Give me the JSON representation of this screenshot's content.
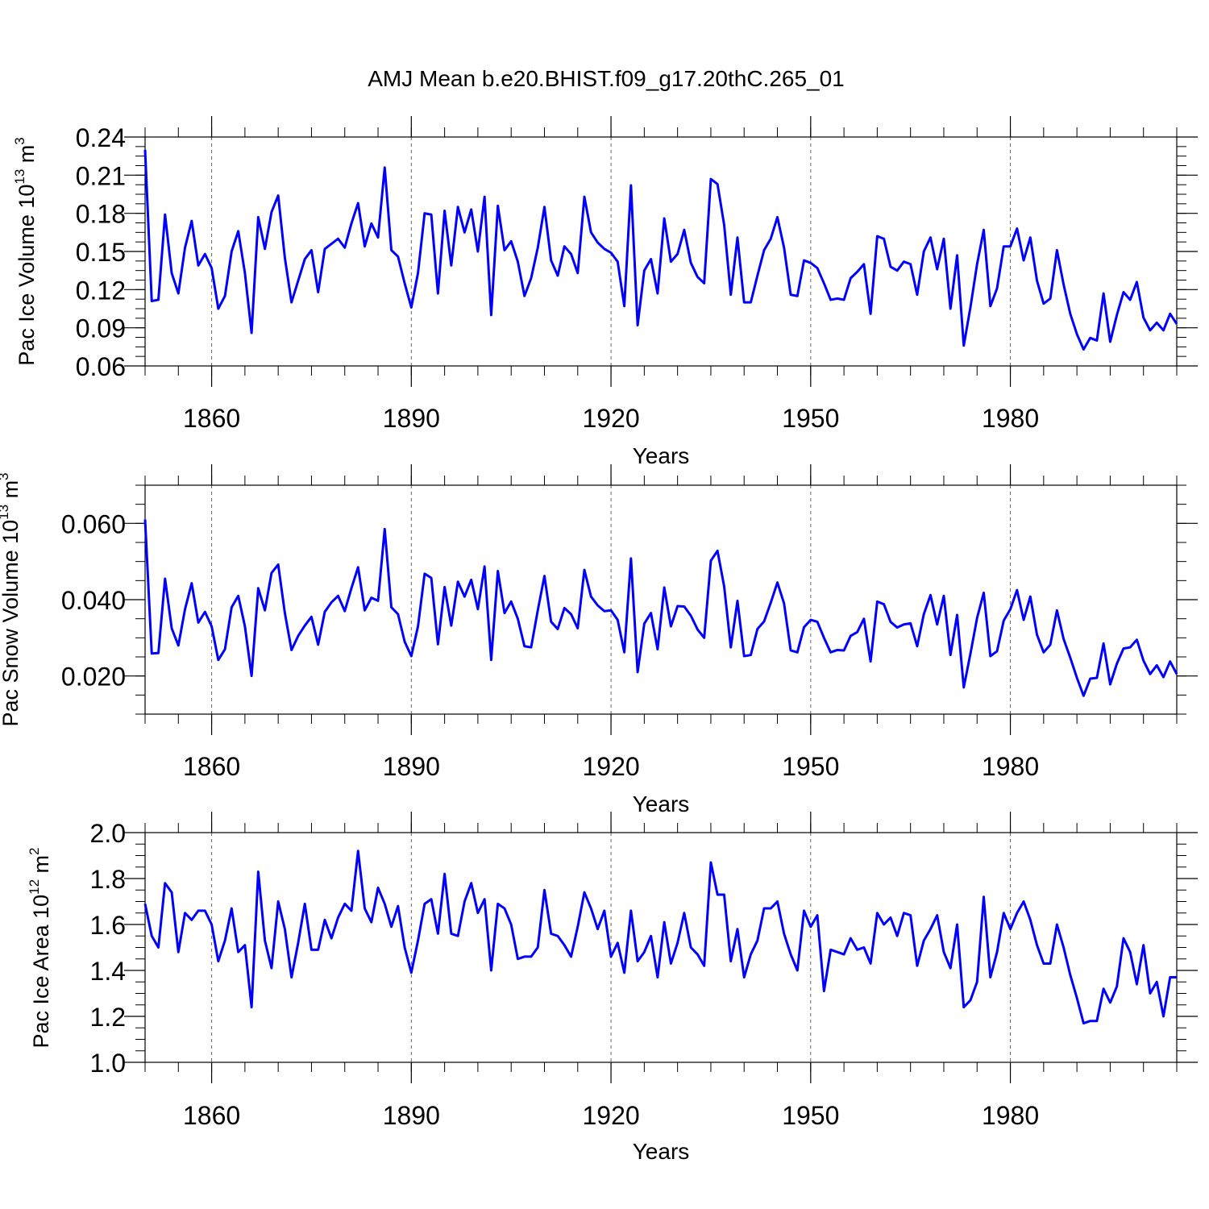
{
  "page_title": "AMJ Mean b.e20.BHIST.f09_g17.20thC.265_01",
  "colors": {
    "series": "#0000ff",
    "axis": "#000000",
    "grid": "#666666"
  },
  "chart_data": [
    {
      "type": "line",
      "title": "AMJ Mean b.e20.BHIST.f09_g17.20thC.265_01",
      "xlabel": "Years",
      "ylabel_main": "Pac Ice Volume 10",
      "ylabel_exp": "13",
      "ylabel_unit": " m",
      "ylabel_unit_exp": "3",
      "x_start": 1850,
      "xlim": [
        1850,
        2005
      ],
      "ylim": [
        0.06,
        0.24
      ],
      "xticks": [
        1860,
        1890,
        1920,
        1950,
        1980
      ],
      "xtick_labels": [
        "1860",
        "1890",
        "1920",
        "1950",
        "1980"
      ],
      "yticks": [
        0.06,
        0.09,
        0.12,
        0.15,
        0.18,
        0.21,
        0.24
      ],
      "ytick_labels": [
        "0.06",
        "0.09",
        "0.12",
        "0.15",
        "0.18",
        "0.21",
        "0.24"
      ],
      "y_minor_step": 0.0075,
      "vgrid": [
        1860,
        1890,
        1920,
        1950,
        1980
      ],
      "series": [
        {
          "name": "Pac Ice Volume",
          "values": [
            0.23,
            0.111,
            0.112,
            0.179,
            0.133,
            0.117,
            0.153,
            0.174,
            0.139,
            0.148,
            0.137,
            0.105,
            0.115,
            0.15,
            0.166,
            0.133,
            0.086,
            0.177,
            0.152,
            0.181,
            0.194,
            0.145,
            0.11,
            0.127,
            0.144,
            0.151,
            0.118,
            0.152,
            0.156,
            0.16,
            0.153,
            0.172,
            0.188,
            0.154,
            0.172,
            0.161,
            0.216,
            0.151,
            0.146,
            0.125,
            0.106,
            0.133,
            0.18,
            0.179,
            0.117,
            0.182,
            0.139,
            0.185,
            0.165,
            0.183,
            0.15,
            0.193,
            0.1,
            0.186,
            0.151,
            0.158,
            0.142,
            0.115,
            0.129,
            0.153,
            0.185,
            0.143,
            0.131,
            0.154,
            0.148,
            0.133,
            0.193,
            0.165,
            0.157,
            0.152,
            0.149,
            0.142,
            0.107,
            0.202,
            0.092,
            0.135,
            0.144,
            0.117,
            0.176,
            0.142,
            0.148,
            0.167,
            0.141,
            0.13,
            0.125,
            0.207,
            0.203,
            0.171,
            0.116,
            0.161,
            0.11,
            0.11,
            0.131,
            0.151,
            0.16,
            0.177,
            0.153,
            0.116,
            0.115,
            0.143,
            0.141,
            0.137,
            0.125,
            0.112,
            0.113,
            0.112,
            0.129,
            0.134,
            0.14,
            0.101,
            0.162,
            0.16,
            0.138,
            0.135,
            0.142,
            0.14,
            0.116,
            0.15,
            0.161,
            0.136,
            0.16,
            0.105,
            0.147,
            0.076,
            0.106,
            0.14,
            0.167,
            0.107,
            0.121,
            0.154,
            0.154,
            0.168,
            0.143,
            0.161,
            0.127,
            0.109,
            0.113,
            0.151,
            0.124,
            0.101,
            0.085,
            0.073,
            0.082,
            0.08,
            0.117,
            0.079,
            0.1,
            0.118,
            0.112,
            0.126,
            0.098,
            0.088,
            0.094,
            0.088,
            0.101,
            0.093
          ]
        }
      ]
    },
    {
      "type": "line",
      "title": "",
      "xlabel": "Years",
      "ylabel_main": "Pac Snow Volume 10",
      "ylabel_exp": "13",
      "ylabel_unit": " m",
      "ylabel_unit_exp": "3",
      "x_start": 1850,
      "xlim": [
        1850,
        2005
      ],
      "ylim": [
        0.01,
        0.07
      ],
      "xticks": [
        1860,
        1890,
        1920,
        1950,
        1980
      ],
      "xtick_labels": [
        "1860",
        "1890",
        "1920",
        "1950",
        "1980"
      ],
      "yticks": [
        0.02,
        0.04,
        0.06
      ],
      "ytick_labels": [
        "0.020",
        "0.040",
        "0.060"
      ],
      "y_minor_step": 0.005,
      "vgrid": [
        1860,
        1890,
        1920,
        1950,
        1980
      ],
      "series": [
        {
          "name": "Pac Snow Volume",
          "values": [
            0.061,
            0.0259,
            0.026,
            0.0455,
            0.0325,
            0.028,
            0.0375,
            0.0443,
            0.034,
            0.0368,
            0.033,
            0.0242,
            0.027,
            0.038,
            0.041,
            0.033,
            0.02,
            0.043,
            0.0372,
            0.047,
            0.0492,
            0.0365,
            0.0268,
            0.0305,
            0.0332,
            0.0355,
            0.0282,
            0.0368,
            0.0393,
            0.041,
            0.037,
            0.043,
            0.0485,
            0.0372,
            0.0405,
            0.0397,
            0.0585,
            0.038,
            0.0362,
            0.029,
            0.0252,
            0.033,
            0.0468,
            0.0457,
            0.0283,
            0.0433,
            0.0332,
            0.0447,
            0.0408,
            0.0452,
            0.0375,
            0.0487,
            0.0242,
            0.0475,
            0.0365,
            0.0395,
            0.035,
            0.0278,
            0.0275,
            0.0372,
            0.0462,
            0.0342,
            0.0323,
            0.0378,
            0.0362,
            0.0325,
            0.0478,
            0.0408,
            0.0385,
            0.037,
            0.0372,
            0.0347,
            0.0262,
            0.0508,
            0.021,
            0.0337,
            0.0365,
            0.027,
            0.0432,
            0.033,
            0.0383,
            0.0382,
            0.0358,
            0.0322,
            0.03,
            0.0502,
            0.0528,
            0.0435,
            0.0275,
            0.0397,
            0.0252,
            0.0255,
            0.0323,
            0.0343,
            0.0392,
            0.0445,
            0.039,
            0.0267,
            0.0262,
            0.0328,
            0.0347,
            0.0342,
            0.03,
            0.0262,
            0.0268,
            0.0267,
            0.0305,
            0.0315,
            0.035,
            0.0238,
            0.0395,
            0.0388,
            0.0342,
            0.0327,
            0.0335,
            0.0338,
            0.0278,
            0.0362,
            0.0412,
            0.0335,
            0.041,
            0.0255,
            0.036,
            0.017,
            0.0258,
            0.0352,
            0.0418,
            0.0252,
            0.0265,
            0.0345,
            0.0375,
            0.0425,
            0.0347,
            0.0408,
            0.0308,
            0.0262,
            0.0282,
            0.0372,
            0.0297,
            0.0248,
            0.0195,
            0.0148,
            0.0193,
            0.0195,
            0.0285,
            0.0178,
            0.0232,
            0.0272,
            0.0275,
            0.0295,
            0.024,
            0.0205,
            0.0228,
            0.0197,
            0.0238,
            0.0205
          ]
        }
      ]
    },
    {
      "type": "line",
      "title": "",
      "xlabel": "Years",
      "ylabel_main": "Pac Ice Area 10",
      "ylabel_exp": "12",
      "ylabel_unit": " m",
      "ylabel_unit_exp": "2",
      "x_start": 1850,
      "xlim": [
        1850,
        2005
      ],
      "ylim": [
        1.0,
        2.0
      ],
      "xticks": [
        1860,
        1890,
        1920,
        1950,
        1980
      ],
      "xtick_labels": [
        "1860",
        "1890",
        "1920",
        "1950",
        "1980"
      ],
      "yticks": [
        1.0,
        1.2,
        1.4,
        1.6,
        1.8,
        2.0
      ],
      "ytick_labels": [
        "1.0",
        "1.2",
        "1.4",
        "1.6",
        "1.8",
        "2.0"
      ],
      "y_minor_step": 0.05,
      "vgrid": [
        1860,
        1890,
        1920,
        1950,
        1980
      ],
      "series": [
        {
          "name": "Pac Ice Area",
          "values": [
            1.69,
            1.55,
            1.5,
            1.78,
            1.74,
            1.48,
            1.65,
            1.62,
            1.66,
            1.66,
            1.6,
            1.44,
            1.53,
            1.67,
            1.48,
            1.51,
            1.24,
            1.83,
            1.53,
            1.41,
            1.7,
            1.58,
            1.37,
            1.52,
            1.69,
            1.49,
            1.49,
            1.62,
            1.54,
            1.63,
            1.69,
            1.66,
            1.92,
            1.67,
            1.61,
            1.76,
            1.69,
            1.59,
            1.68,
            1.5,
            1.39,
            1.53,
            1.69,
            1.71,
            1.56,
            1.82,
            1.56,
            1.55,
            1.7,
            1.78,
            1.65,
            1.71,
            1.4,
            1.69,
            1.67,
            1.6,
            1.45,
            1.46,
            1.46,
            1.5,
            1.75,
            1.56,
            1.55,
            1.51,
            1.46,
            1.59,
            1.74,
            1.67,
            1.58,
            1.66,
            1.46,
            1.52,
            1.39,
            1.66,
            1.44,
            1.48,
            1.55,
            1.37,
            1.61,
            1.43,
            1.52,
            1.65,
            1.5,
            1.47,
            1.42,
            1.87,
            1.73,
            1.73,
            1.44,
            1.58,
            1.37,
            1.47,
            1.53,
            1.67,
            1.67,
            1.7,
            1.56,
            1.47,
            1.4,
            1.66,
            1.59,
            1.64,
            1.31,
            1.49,
            1.48,
            1.47,
            1.54,
            1.49,
            1.5,
            1.43,
            1.65,
            1.6,
            1.63,
            1.55,
            1.65,
            1.64,
            1.42,
            1.53,
            1.58,
            1.64,
            1.48,
            1.41,
            1.6,
            1.24,
            1.27,
            1.35,
            1.72,
            1.37,
            1.48,
            1.65,
            1.58,
            1.65,
            1.7,
            1.62,
            1.51,
            1.43,
            1.43,
            1.6,
            1.5,
            1.38,
            1.28,
            1.17,
            1.18,
            1.18,
            1.32,
            1.26,
            1.33,
            1.54,
            1.48,
            1.34,
            1.51,
            1.3,
            1.35,
            1.2,
            1.37,
            1.37
          ]
        }
      ]
    }
  ]
}
